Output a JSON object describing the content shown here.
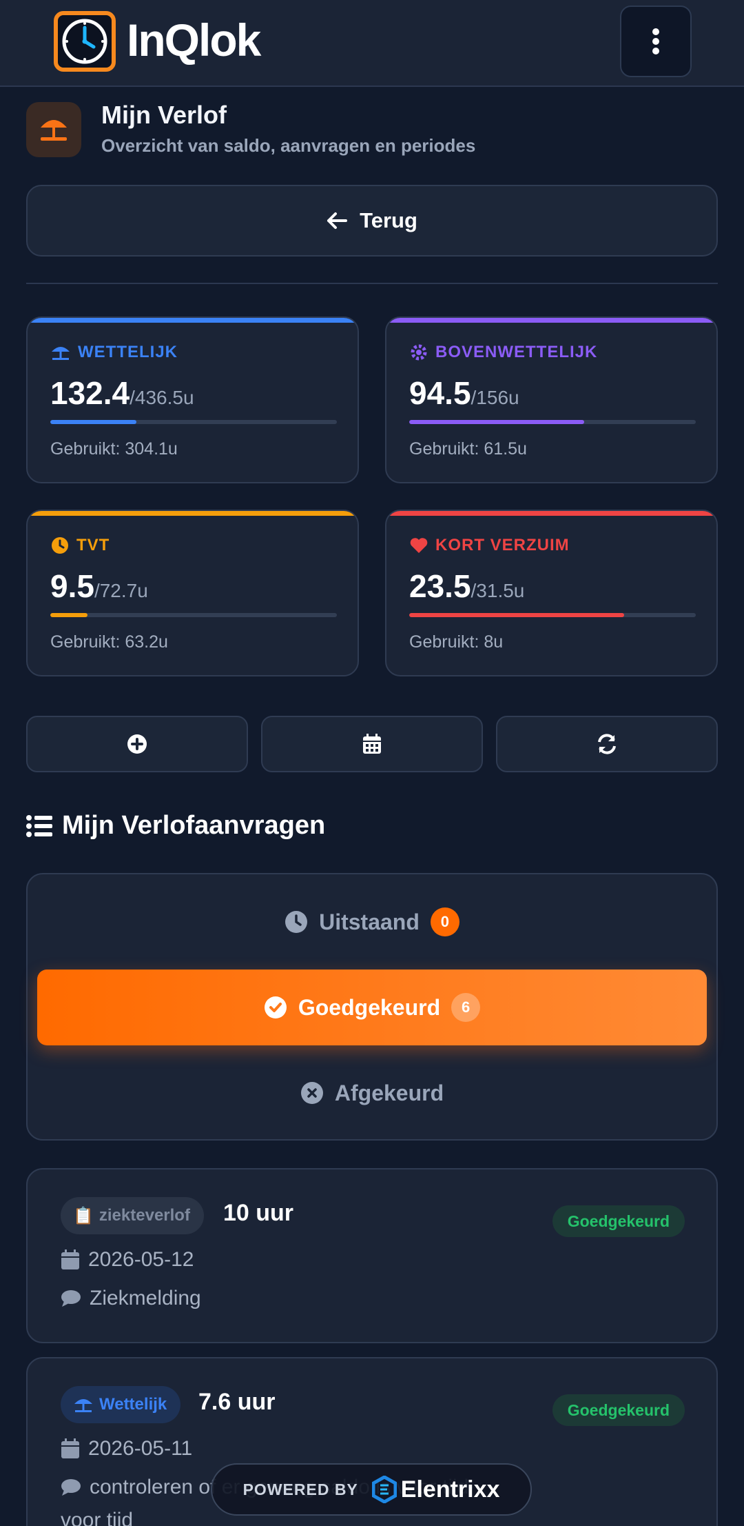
{
  "header": {
    "logo_text": "InQlok",
    "menu_icon": "kebab-menu-icon"
  },
  "page": {
    "title": "Mijn Verlof",
    "subtitle": "Overzicht van saldo, aanvragen en periodes",
    "icon": "beach-umbrella-icon",
    "back_label": "Terug"
  },
  "balances": [
    {
      "label": "WETTELIJK",
      "value": "132.4",
      "total": "/436.5u",
      "used": "Gebruikt: 304.1u",
      "color": "#3b82f6",
      "fraction": 0.3,
      "icon": "umbrella-icon"
    },
    {
      "label": "BOVENWETTELIJK",
      "value": "94.5",
      "total": "/156u",
      "used": "Gebruikt: 61.5u",
      "color": "#8b5cf6",
      "fraction": 0.61,
      "icon": "cog-icon"
    },
    {
      "label": "TVT",
      "value": "9.5",
      "total": "/72.7u",
      "used": "Gebruikt: 63.2u",
      "color": "#f59e0b",
      "fraction": 0.13,
      "icon": "clock-icon"
    },
    {
      "label": "KORT VERZUIM",
      "value": "23.5",
      "total": "/31.5u",
      "used": "Gebruikt: 8u",
      "color": "#ef4444",
      "fraction": 0.75,
      "icon": "heart-icon"
    }
  ],
  "actions": [
    "add-icon",
    "calendar-icon",
    "refresh-icon"
  ],
  "requests_section": {
    "title": "Mijn Verlofaanvragen"
  },
  "tabs": [
    {
      "label": "Uitstaand",
      "count": "0"
    },
    {
      "label": "Goedgekeurd",
      "count": "6"
    },
    {
      "label": "Afgekeurd",
      "count": ""
    }
  ],
  "requests": [
    {
      "type": "ziekteverlof",
      "type_emoji": "📋",
      "hours": "10 uur",
      "status": "Goedgekeurd",
      "date": "2026-05-12",
      "note": "Ziekmelding"
    },
    {
      "type": "Wettelijk",
      "hours": "7.6 uur",
      "status": "Goedgekeurd",
      "date": "2026-05-11",
      "note": "controleren of er genoeg saldo is voor tijd",
      "note_tail": "voor tijd"
    }
  ],
  "footer": {
    "powered_by": "POWERED BY",
    "brand": "Elentrixx"
  }
}
